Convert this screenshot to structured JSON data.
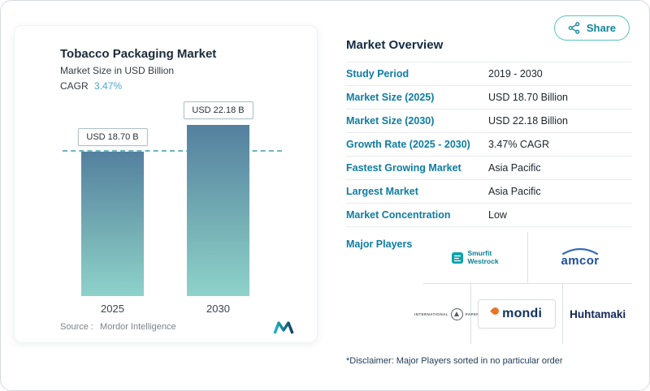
{
  "header": {
    "share_label": "Share"
  },
  "chart_card": {
    "title": "Tobacco Packaging Market",
    "subtitle": "Market Size in USD Billion",
    "cagr_label": "CAGR",
    "cagr_value": "3.47%",
    "source_label": "Source :",
    "source_name": "Mordor Intelligence"
  },
  "chart_data": {
    "type": "bar",
    "title": "Tobacco Packaging Market",
    "ylabel": "Market Size in USD Billion",
    "categories": [
      "2025",
      "2030"
    ],
    "values": [
      18.7,
      22.18
    ],
    "value_labels": [
      "USD 18.70 B",
      "USD 22.18 B"
    ],
    "ylim": [
      0,
      24
    ],
    "reference_line": 18.7,
    "cagr": "3.47%",
    "grid": false,
    "legend": false
  },
  "overview": {
    "title": "Market Overview",
    "rows": [
      {
        "label": "Study Period",
        "value": "2019 - 2030"
      },
      {
        "label": "Market Size (2025)",
        "value": "USD 18.70 Billion"
      },
      {
        "label": "Market Size (2030)",
        "value": "USD 22.18 Billion"
      },
      {
        "label": "Growth Rate (2025 - 2030)",
        "value": "3.47% CAGR"
      },
      {
        "label": "Fastest Growing Market",
        "value": "Asia Pacific"
      },
      {
        "label": "Largest Market",
        "value": "Asia Pacific"
      },
      {
        "label": "Market Concentration",
        "value": "Low"
      }
    ],
    "major_players_label": "Major Players",
    "players": [
      {
        "name": "Smurfit Westrock",
        "line1": "Smurfit",
        "line2": "Westrock"
      },
      {
        "name": "amcor"
      },
      {
        "name": "International Paper",
        "line1": "INTERNATIONAL",
        "line2": "PAPER"
      },
      {
        "name": "mondi"
      },
      {
        "name": "Huhtamaki"
      }
    ],
    "disclaimer": "*Disclaimer: Major Players sorted in no particular order"
  },
  "colors": {
    "accent_teal": "#0e7ca3",
    "heading_navy": "#132b43",
    "cagr_blue": "#4fa8d5",
    "bar_gradient_top": "#54809f",
    "bar_gradient_bottom": "#8ed2ca",
    "dashed_line": "#6cb6bd",
    "share_border": "#59c5c1",
    "mondi_flame": "#e97425"
  }
}
